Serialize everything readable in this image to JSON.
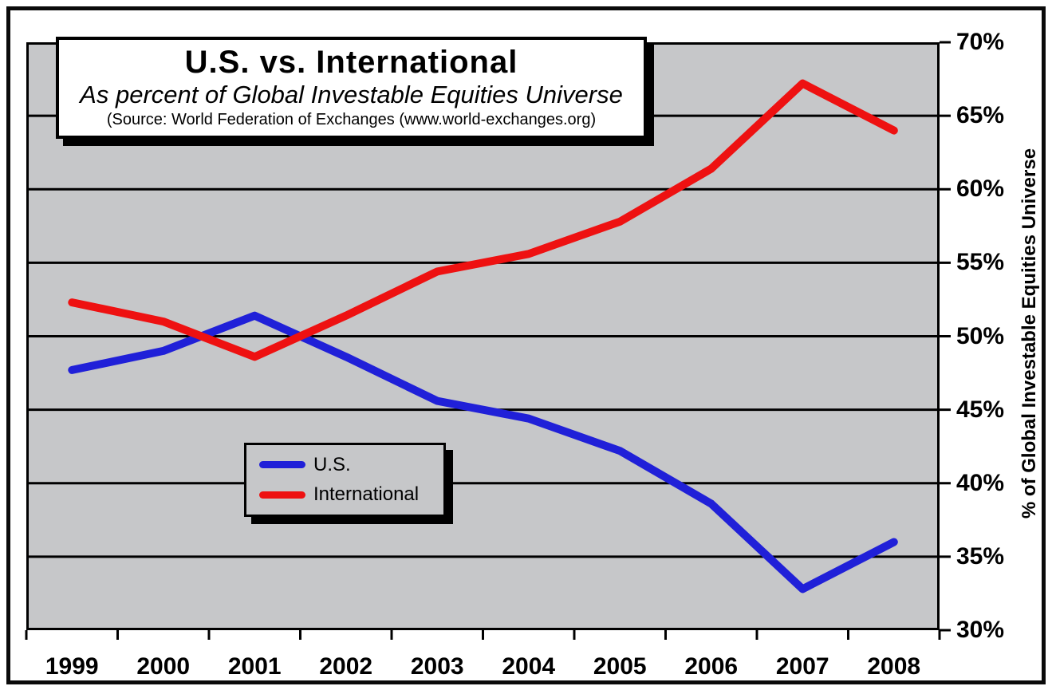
{
  "chart_data": {
    "type": "line",
    "title": "U.S. vs. International",
    "subtitle": "As percent of Global Investable Equities Universe",
    "source": "(Source: World Federation of Exchanges (www.world-exchanges.org)",
    "ylabel": "% of Global Investable Equities Universe",
    "xlabel": "",
    "x": [
      "1999",
      "2000",
      "2001",
      "2002",
      "2003",
      "2004",
      "2005",
      "2006",
      "2007",
      "2008"
    ],
    "series": [
      {
        "name": "U.S.",
        "color": "#2020D8",
        "values": [
          47.7,
          49.0,
          51.4,
          48.6,
          45.6,
          44.4,
          42.2,
          38.6,
          32.8,
          36.0
        ]
      },
      {
        "name": "International",
        "color": "#EE1111",
        "values": [
          52.3,
          51.0,
          48.6,
          51.4,
          54.4,
          55.6,
          57.8,
          61.4,
          67.2,
          64.0
        ]
      }
    ],
    "ylim": [
      30,
      70
    ],
    "ytick_step": 5,
    "ytick_labels": [
      "70%",
      "65%",
      "60%",
      "55%",
      "50%",
      "45%",
      "40%",
      "35%",
      "30%"
    ],
    "grid": "horizontal",
    "legend_position": "inside-left-center",
    "plot_background": "#C6C7C9",
    "axis_color": "#000000"
  }
}
